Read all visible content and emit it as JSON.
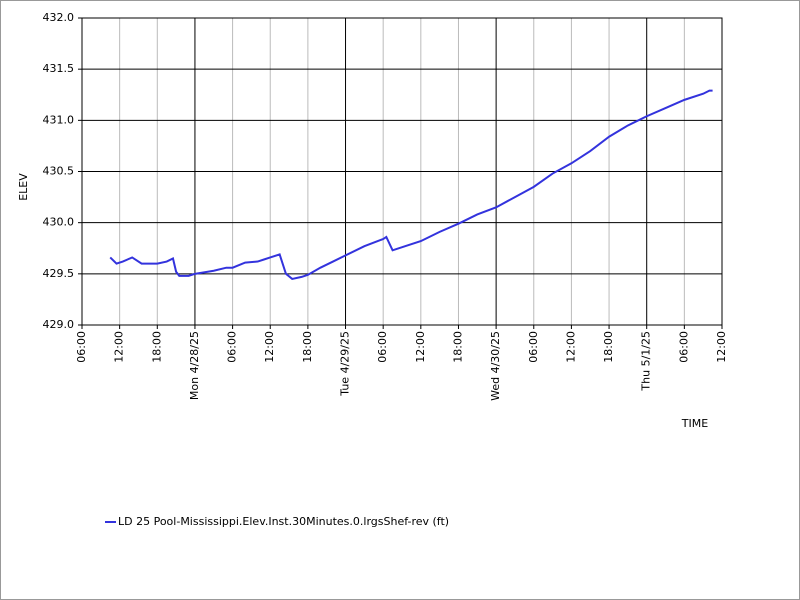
{
  "chart_data": {
    "type": "line",
    "x_label": "TIME",
    "y_label": "ELEV",
    "xlim": [
      "2025-04-27T06:00",
      "2025-05-01T12:00"
    ],
    "xticks": [
      {
        "value": "2025-04-27T06:00",
        "label": "06:00"
      },
      {
        "value": "2025-04-27T12:00",
        "label": "12:00"
      },
      {
        "value": "2025-04-27T18:00",
        "label": "18:00"
      },
      {
        "value": "2025-04-28T00:00",
        "label": "Mon 4/28/25"
      },
      {
        "value": "2025-04-28T06:00",
        "label": "06:00"
      },
      {
        "value": "2025-04-28T12:00",
        "label": "12:00"
      },
      {
        "value": "2025-04-28T18:00",
        "label": "18:00"
      },
      {
        "value": "2025-04-29T00:00",
        "label": "Tue 4/29/25"
      },
      {
        "value": "2025-04-29T06:00",
        "label": "06:00"
      },
      {
        "value": "2025-04-29T12:00",
        "label": "12:00"
      },
      {
        "value": "2025-04-29T18:00",
        "label": "18:00"
      },
      {
        "value": "2025-04-30T00:00",
        "label": "Wed 4/30/25"
      },
      {
        "value": "2025-04-30T06:00",
        "label": "06:00"
      },
      {
        "value": "2025-04-30T12:00",
        "label": "12:00"
      },
      {
        "value": "2025-04-30T18:00",
        "label": "18:00"
      },
      {
        "value": "2025-05-01T00:00",
        "label": "Thu 5/1/25"
      },
      {
        "value": "2025-05-01T06:00",
        "label": "06:00"
      },
      {
        "value": "2025-05-01T12:00",
        "label": "12:00"
      }
    ],
    "ylim": [
      429.0,
      432.0
    ],
    "yticks": [
      {
        "value": 429.0,
        "label": "429.0"
      },
      {
        "value": 429.5,
        "label": "429.5"
      },
      {
        "value": 430.0,
        "label": "430.0"
      },
      {
        "value": 430.5,
        "label": "430.5"
      },
      {
        "value": 431.0,
        "label": "431.0"
      },
      {
        "value": 431.5,
        "label": "431.5"
      },
      {
        "value": 432.0,
        "label": "432.0"
      }
    ],
    "grid": true,
    "legend": "bottom",
    "x": [
      "2025-04-27T10:30",
      "2025-04-27T11:30",
      "2025-04-27T12:30",
      "2025-04-27T14:00",
      "2025-04-27T15:30",
      "2025-04-27T18:00",
      "2025-04-27T19:30",
      "2025-04-27T20:30",
      "2025-04-27T21:00",
      "2025-04-27T21:30",
      "2025-04-27T23:00",
      "2025-04-28T00:00",
      "2025-04-28T03:00",
      "2025-04-28T05:00",
      "2025-04-28T06:00",
      "2025-04-28T08:00",
      "2025-04-28T10:00",
      "2025-04-28T11:00",
      "2025-04-28T12:00",
      "2025-04-28T13:30",
      "2025-04-28T14:30",
      "2025-04-28T15:30",
      "2025-04-28T17:00",
      "2025-04-28T18:00",
      "2025-04-28T20:00",
      "2025-04-28T22:00",
      "2025-04-29T00:00",
      "2025-04-29T03:00",
      "2025-04-29T06:00",
      "2025-04-29T06:30",
      "2025-04-29T07:30",
      "2025-04-29T09:30",
      "2025-04-29T12:00",
      "2025-04-29T15:00",
      "2025-04-29T18:00",
      "2025-04-29T21:00",
      "2025-04-30T00:00",
      "2025-04-30T03:00",
      "2025-04-30T06:00",
      "2025-04-30T09:00",
      "2025-04-30T12:00",
      "2025-04-30T15:00",
      "2025-04-30T18:00",
      "2025-04-30T21:00",
      "2025-05-01T00:00",
      "2025-05-01T03:00",
      "2025-05-01T06:00",
      "2025-05-01T09:00",
      "2025-05-01T10:00",
      "2025-05-01T10:30"
    ],
    "series": [
      {
        "name": "LD 25 Pool-Mississippi.Elev.Inst.30Minutes.0.lrgsShef-rev (ft)",
        "color": "#3333dd",
        "values": [
          429.66,
          429.6,
          429.62,
          429.66,
          429.6,
          429.6,
          429.62,
          429.65,
          429.52,
          429.48,
          429.48,
          429.5,
          429.53,
          429.56,
          429.56,
          429.61,
          429.62,
          429.64,
          429.66,
          429.69,
          429.5,
          429.45,
          429.47,
          429.49,
          429.56,
          429.62,
          429.68,
          429.77,
          429.84,
          429.86,
          429.73,
          429.77,
          429.82,
          429.91,
          429.99,
          430.08,
          430.15,
          430.25,
          430.35,
          430.48,
          430.58,
          430.7,
          430.84,
          430.95,
          431.04,
          431.12,
          431.2,
          431.26,
          431.29,
          431.29
        ]
      }
    ]
  }
}
